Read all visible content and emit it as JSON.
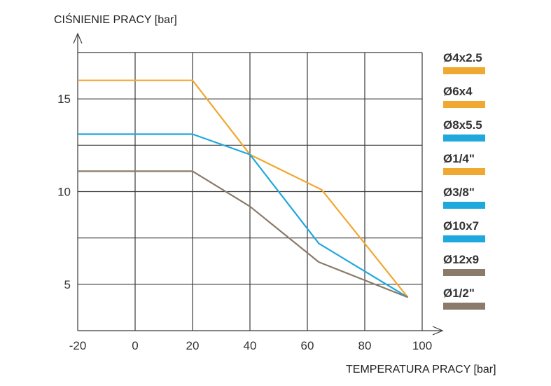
{
  "chart_data": {
    "type": "line",
    "ylabel": "CIŚNIENIE PRACY [bar]",
    "xlabel": "TEMPERATURA PRACY [bar]",
    "xlim": [
      -20,
      100
    ],
    "ylim": [
      2.5,
      17.5
    ],
    "x_ticks": [
      -20,
      0,
      20,
      40,
      60,
      80,
      100
    ],
    "y_ticks": [
      5,
      10,
      15
    ],
    "grid": true,
    "legend_position": "right",
    "legend": [
      {
        "label": "Ø4x2.5",
        "color": "#F0A830"
      },
      {
        "label": "Ø6x4",
        "color": "#F0A830"
      },
      {
        "label": "Ø8x5.5",
        "color": "#1EA8DC"
      },
      {
        "label": "Ø1/4\"",
        "color": "#F0A830"
      },
      {
        "label": "Ø3/8\"",
        "color": "#1EA8DC"
      },
      {
        "label": "Ø10x7",
        "color": "#1EA8DC"
      },
      {
        "label": "Ø12x9",
        "color": "#8A7B6A"
      },
      {
        "label": "Ø1/2\"",
        "color": "#8A7B6A"
      }
    ],
    "series": [
      {
        "color": "#F0A830",
        "x": [
          -20,
          20,
          40,
          65,
          95
        ],
        "y": [
          16,
          16,
          12,
          10.1,
          4.3
        ]
      },
      {
        "color": "#1EA8DC",
        "x": [
          -20,
          20,
          40,
          64,
          95
        ],
        "y": [
          13.1,
          13.1,
          12,
          7.2,
          4.3
        ]
      },
      {
        "color": "#8A7B6A",
        "x": [
          -20,
          20,
          40,
          64,
          95
        ],
        "y": [
          11.1,
          11.1,
          9.2,
          6.2,
          4.3
        ]
      }
    ]
  }
}
